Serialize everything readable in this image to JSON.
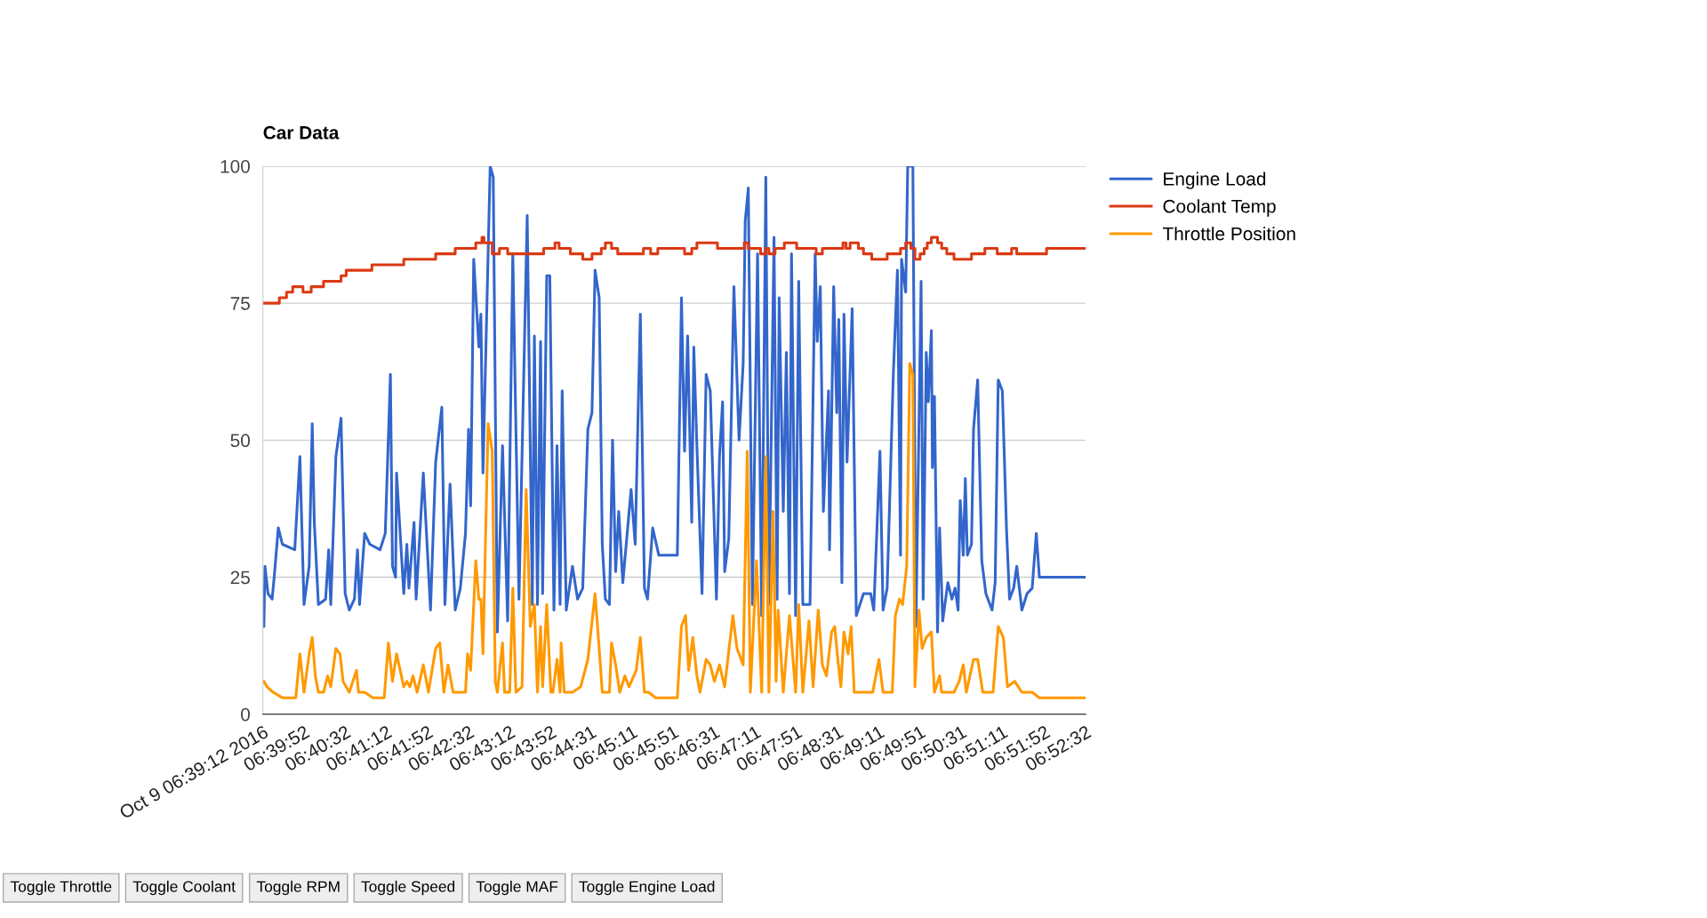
{
  "chart_data": {
    "type": "line",
    "title": "Car Data",
    "grid": "y",
    "legend": "right",
    "ylim": [
      0,
      100
    ],
    "yticks": [
      0,
      25,
      50,
      75,
      100
    ],
    "xlim": [
      "2016-10-09T06:39:12",
      "2016-10-09T06:52:32"
    ],
    "xticks": [
      {
        "value": "2016-10-09T06:39:12",
        "label": "Oct 9 06:39:12 2016"
      },
      {
        "value": "2016-10-09T06:39:52",
        "label": "06:39:52"
      },
      {
        "value": "2016-10-09T06:40:32",
        "label": "06:40:32"
      },
      {
        "value": "2016-10-09T06:41:12",
        "label": "06:41:12"
      },
      {
        "value": "2016-10-09T06:41:52",
        "label": "06:41:52"
      },
      {
        "value": "2016-10-09T06:42:32",
        "label": "06:42:32"
      },
      {
        "value": "2016-10-09T06:43:12",
        "label": "06:43:12"
      },
      {
        "value": "2016-10-09T06:43:52",
        "label": "06:43:52"
      },
      {
        "value": "2016-10-09T06:44:31",
        "label": "06:44:31"
      },
      {
        "value": "2016-10-09T06:45:11",
        "label": "06:45:11"
      },
      {
        "value": "2016-10-09T06:45:51",
        "label": "06:45:51"
      },
      {
        "value": "2016-10-09T06:46:31",
        "label": "06:46:31"
      },
      {
        "value": "2016-10-09T06:47:11",
        "label": "06:47:11"
      },
      {
        "value": "2016-10-09T06:47:51",
        "label": "06:47:51"
      },
      {
        "value": "2016-10-09T06:48:31",
        "label": "06:48:31"
      },
      {
        "value": "2016-10-09T06:49:11",
        "label": "06:49:11"
      },
      {
        "value": "2016-10-09T06:49:51",
        "label": "06:49:51"
      },
      {
        "value": "2016-10-09T06:50:31",
        "label": "06:50:31"
      },
      {
        "value": "2016-10-09T06:51:11",
        "label": "06:51:11"
      },
      {
        "value": "2016-10-09T06:51:52",
        "label": "06:51:52"
      },
      {
        "value": "2016-10-09T06:52:32",
        "label": "06:52:32"
      }
    ],
    "annotations": [
      "Toggle Throttle",
      "Toggle Coolant",
      "Toggle RPM",
      "Toggle Speed",
      "Toggle MAF",
      "Toggle Engine Load"
    ],
    "series": [
      {
        "name": "Engine Load",
        "type": "line",
        "color": "#3366cc",
        "x": [
          "2016-10-09T06:39:13",
          "2016-10-09T06:39:14",
          "2016-10-09T06:39:17",
          "2016-10-09T06:39:21",
          "2016-10-09T06:39:23",
          "2016-10-09T06:39:27",
          "2016-10-09T06:39:31",
          "2016-10-09T06:39:43",
          "2016-10-09T06:39:48",
          "2016-10-09T06:39:52",
          "2016-10-09T06:39:57",
          "2016-10-09T06:40:00",
          "2016-10-09T06:40:02",
          "2016-10-09T06:40:06",
          "2016-10-09T06:40:13",
          "2016-10-09T06:40:16",
          "2016-10-09T06:40:18",
          "2016-10-09T06:40:23",
          "2016-10-09T06:40:28",
          "2016-10-09T06:40:32",
          "2016-10-09T06:40:36",
          "2016-10-09T06:40:41",
          "2016-10-09T06:40:44",
          "2016-10-09T06:40:46",
          "2016-10-09T06:40:51",
          "2016-10-09T06:40:56",
          "2016-10-09T06:41:06",
          "2016-10-09T06:41:11",
          "2016-10-09T06:41:16",
          "2016-10-09T06:41:18",
          "2016-10-09T06:41:21",
          "2016-10-09T06:41:22",
          "2016-10-09T06:41:29",
          "2016-10-09T06:41:32",
          "2016-10-09T06:41:34",
          "2016-10-09T06:41:39",
          "2016-10-09T06:41:41",
          "2016-10-09T06:41:48",
          "2016-10-09T06:41:55",
          "2016-10-09T06:42:00",
          "2016-10-09T06:42:06",
          "2016-10-09T06:42:09",
          "2016-10-09T06:42:14",
          "2016-10-09T06:42:19",
          "2016-10-09T06:42:24",
          "2016-10-09T06:42:29",
          "2016-10-09T06:42:32",
          "2016-10-09T06:42:34",
          "2016-10-09T06:42:37",
          "2016-10-09T06:42:42",
          "2016-10-09T06:42:44",
          "2016-10-09T06:42:46",
          "2016-10-09T06:42:53",
          "2016-10-09T06:42:56",
          "2016-10-09T06:43:00",
          "2016-10-09T06:43:05",
          "2016-10-09T06:43:10",
          "2016-10-09T06:43:15",
          "2016-10-09T06:43:21",
          "2016-10-09T06:43:29",
          "2016-10-09T06:43:34",
          "2016-10-09T06:43:36",
          "2016-10-09T06:43:39",
          "2016-10-09T06:43:42",
          "2016-10-09T06:43:44",
          "2016-10-09T06:43:48",
          "2016-10-09T06:43:51",
          "2016-10-09T06:43:55",
          "2016-10-09T06:43:58",
          "2016-10-09T06:44:01",
          "2016-10-09T06:44:03",
          "2016-10-09T06:44:07",
          "2016-10-09T06:44:13",
          "2016-10-09T06:44:18",
          "2016-10-09T06:44:23",
          "2016-10-09T06:44:28",
          "2016-10-09T06:44:32",
          "2016-10-09T06:44:35",
          "2016-10-09T06:44:39",
          "2016-10-09T06:44:42",
          "2016-10-09T06:44:45",
          "2016-10-09T06:44:49",
          "2016-10-09T06:44:52",
          "2016-10-09T06:44:55",
          "2016-10-09T06:44:58",
          "2016-10-09T06:45:02",
          "2016-10-09T06:45:10",
          "2016-10-09T06:45:14",
          "2016-10-09T06:45:19",
          "2016-10-09T06:45:23",
          "2016-10-09T06:45:26",
          "2016-10-09T06:45:31",
          "2016-10-09T06:45:37",
          "2016-10-09T06:45:55",
          "2016-10-09T06:45:59",
          "2016-10-09T06:46:02",
          "2016-10-09T06:46:05",
          "2016-10-09T06:46:09",
          "2016-10-09T06:46:11",
          "2016-10-09T06:46:14",
          "2016-10-09T06:46:19",
          "2016-10-09T06:46:23",
          "2016-10-09T06:46:27",
          "2016-10-09T06:46:33",
          "2016-10-09T06:46:36",
          "2016-10-09T06:46:39",
          "2016-10-09T06:46:41",
          "2016-10-09T06:46:45",
          "2016-10-09T06:46:50",
          "2016-10-09T06:46:55",
          "2016-10-09T06:46:59",
          "2016-10-09T06:47:01",
          "2016-10-09T06:47:04",
          "2016-10-09T06:47:08",
          "2016-10-09T06:47:13",
          "2016-10-09T06:47:17",
          "2016-10-09T06:47:21",
          "2016-10-09T06:47:24",
          "2016-10-09T06:47:29",
          "2016-10-09T06:47:32",
          "2016-10-09T06:47:34",
          "2016-10-09T06:47:38",
          "2016-10-09T06:47:41",
          "2016-10-09T06:47:44",
          "2016-10-09T06:47:46",
          "2016-10-09T06:47:50",
          "2016-10-09T06:47:53",
          "2016-10-09T06:47:57",
          "2016-10-09T06:48:04",
          "2016-10-09T06:48:09",
          "2016-10-09T06:48:11",
          "2016-10-09T06:48:14",
          "2016-10-09T06:48:17",
          "2016-10-09T06:48:22",
          "2016-10-09T06:48:23",
          "2016-10-09T06:48:27",
          "2016-10-09T06:48:30",
          "2016-10-09T06:48:32",
          "2016-10-09T06:48:35",
          "2016-10-09T06:48:37",
          "2016-10-09T06:48:40",
          "2016-10-09T06:48:45",
          "2016-10-09T06:48:49",
          "2016-10-09T06:48:56",
          "2016-10-09T06:49:03",
          "2016-10-09T06:49:06",
          "2016-10-09T06:49:12",
          "2016-10-09T06:49:15",
          "2016-10-09T06:49:19",
          "2016-10-09T06:49:25",
          "2016-10-09T06:49:29",
          "2016-10-09T06:49:32",
          "2016-10-09T06:49:33",
          "2016-10-09T06:49:37",
          "2016-10-09T06:49:39",
          "2016-10-09T06:49:44",
          "2016-10-09T06:49:47",
          "2016-10-09T06:49:52",
          "2016-10-09T06:49:54",
          "2016-10-09T06:49:57",
          "2016-10-09T06:49:59",
          "2016-10-09T06:50:02",
          "2016-10-09T06:50:03",
          "2016-10-09T06:50:05",
          "2016-10-09T06:50:08",
          "2016-10-09T06:50:10",
          "2016-10-09T06:50:13",
          "2016-10-09T06:50:18",
          "2016-10-09T06:50:22",
          "2016-10-09T06:50:25",
          "2016-10-09T06:50:28",
          "2016-10-09T06:50:30",
          "2016-10-09T06:50:33",
          "2016-10-09T06:50:35",
          "2016-10-09T06:50:37",
          "2016-10-09T06:50:41",
          "2016-10-09T06:50:43",
          "2016-10-09T06:50:47",
          "2016-10-09T06:50:51",
          "2016-10-09T06:50:55",
          "2016-10-09T06:51:01",
          "2016-10-09T06:51:04",
          "2016-10-09T06:51:07",
          "2016-10-09T06:51:11",
          "2016-10-09T06:51:15",
          "2016-10-09T06:51:18",
          "2016-10-09T06:51:22",
          "2016-10-09T06:51:25",
          "2016-10-09T06:51:30",
          "2016-10-09T06:51:35",
          "2016-10-09T06:51:40",
          "2016-10-09T06:51:44",
          "2016-10-09T06:51:47",
          "2016-10-09T06:51:58",
          "2016-10-09T06:52:32"
        ],
        "values": [
          16,
          27,
          22,
          21,
          25,
          34,
          31,
          30,
          47,
          20,
          27,
          53,
          35,
          20,
          21,
          30,
          20,
          47,
          54,
          22,
          19,
          21,
          30,
          20,
          33,
          31,
          30,
          33,
          62,
          27,
          25,
          44,
          22,
          31,
          23,
          35,
          21,
          44,
          19,
          46,
          56,
          20,
          42,
          19,
          23,
          33,
          52,
          38,
          83,
          67,
          73,
          44,
          100,
          98,
          15,
          49,
          17,
          84,
          21,
          91,
          20,
          69,
          20,
          68,
          22,
          80,
          80,
          19,
          49,
          20,
          59,
          19,
          27,
          21,
          23,
          52,
          55,
          81,
          76,
          31,
          21,
          20,
          50,
          26,
          37,
          24,
          41,
          31,
          73,
          23,
          21,
          34,
          29,
          29,
          76,
          48,
          69,
          35,
          67,
          49,
          22,
          62,
          59,
          21,
          47,
          57,
          26,
          32,
          78,
          50,
          64,
          90,
          96,
          20,
          84,
          18,
          98,
          20,
          87,
          21,
          76,
          37,
          66,
          22,
          84,
          18,
          79,
          20,
          20,
          84,
          68,
          78,
          37,
          59,
          30,
          78,
          55,
          72,
          24,
          73,
          46,
          74,
          18,
          22,
          22,
          19,
          48,
          19,
          23,
          62,
          81,
          29,
          83,
          77,
          100,
          100,
          16,
          79,
          21,
          66,
          57,
          70,
          45,
          58,
          15,
          34,
          17,
          24,
          21,
          23,
          19,
          39,
          29,
          43,
          29,
          31,
          52,
          61,
          28,
          22,
          19,
          24,
          61,
          59,
          34,
          21,
          23,
          27,
          19,
          22,
          23,
          33,
          25,
          25,
          25
        ]
      },
      {
        "name": "Coolant Temp",
        "type": "step",
        "color": "#dc3912",
        "x": [
          "2016-10-09T06:39:12",
          "2016-10-09T06:39:28",
          "2016-10-09T06:39:35",
          "2016-10-09T06:39:41",
          "2016-10-09T06:39:51",
          "2016-10-09T06:39:59",
          "2016-10-09T06:40:11",
          "2016-10-09T06:40:28",
          "2016-10-09T06:40:33",
          "2016-10-09T06:40:58",
          "2016-10-09T06:41:29",
          "2016-10-09T06:42:00",
          "2016-10-09T06:42:19",
          "2016-10-09T06:42:39",
          "2016-10-09T06:42:45",
          "2016-10-09T06:42:47",
          "2016-10-09T06:42:55",
          "2016-10-09T06:43:02",
          "2016-10-09T06:43:10",
          "2016-10-09T06:43:45",
          "2016-10-09T06:43:56",
          "2016-10-09T06:44:00",
          "2016-10-09T06:44:11",
          "2016-10-09T06:44:23",
          "2016-10-09T06:44:32",
          "2016-10-09T06:44:41",
          "2016-10-09T06:44:45",
          "2016-10-09T06:44:51",
          "2016-10-09T06:44:57",
          "2016-10-09T06:45:22",
          "2016-10-09T06:45:29",
          "2016-10-09T06:45:36",
          "2016-10-09T06:46:02",
          "2016-10-09T06:46:09",
          "2016-10-09T06:46:14",
          "2016-10-09T06:46:34",
          "2016-10-09T06:47:00",
          "2016-10-09T06:47:04",
          "2016-10-09T06:47:16",
          "2016-10-09T06:47:21",
          "2016-10-09T06:47:24",
          "2016-10-09T06:47:30",
          "2016-10-09T06:47:39",
          "2016-10-09T06:47:51",
          "2016-10-09T06:48:10",
          "2016-10-09T06:48:16",
          "2016-10-09T06:48:36",
          "2016-10-09T06:48:39",
          "2016-10-09T06:48:43",
          "2016-10-09T06:48:51",
          "2016-10-09T06:48:56",
          "2016-10-09T06:49:04",
          "2016-10-09T06:49:19",
          "2016-10-09T06:49:32",
          "2016-10-09T06:49:37",
          "2016-10-09T06:49:42",
          "2016-10-09T06:49:46",
          "2016-10-09T06:49:51",
          "2016-10-09T06:49:55",
          "2016-10-09T06:49:58",
          "2016-10-09T06:50:02",
          "2016-10-09T06:50:08",
          "2016-10-09T06:50:12",
          "2016-10-09T06:50:17",
          "2016-10-09T06:50:24",
          "2016-10-09T06:50:41",
          "2016-10-09T06:50:54",
          "2016-10-09T06:51:06",
          "2016-10-09T06:51:20",
          "2016-10-09T06:51:25",
          "2016-10-09T06:51:54",
          "2016-10-09T06:52:32"
        ],
        "values": [
          75,
          76,
          77,
          78,
          77,
          78,
          79,
          80,
          81,
          82,
          83,
          84,
          85,
          86,
          87,
          86,
          84,
          85,
          84,
          85,
          86,
          85,
          84,
          83,
          84,
          85,
          86,
          85,
          84,
          85,
          84,
          85,
          84,
          85,
          86,
          85,
          86,
          85,
          84,
          85,
          84,
          85,
          86,
          85,
          84,
          85,
          86,
          85,
          86,
          85,
          84,
          83,
          84,
          85,
          86,
          85,
          83,
          84,
          85,
          86,
          87,
          86,
          85,
          84,
          83,
          84,
          85,
          84,
          85,
          84,
          85,
          85
        ]
      },
      {
        "name": "Throttle Position",
        "type": "line",
        "color": "#ff9900",
        "x": [
          "2016-10-09T06:39:13",
          "2016-10-09T06:39:16",
          "2016-10-09T06:39:22",
          "2016-10-09T06:39:31",
          "2016-10-09T06:39:44",
          "2016-10-09T06:39:48",
          "2016-10-09T06:39:52",
          "2016-10-09T06:39:57",
          "2016-10-09T06:40:00",
          "2016-10-09T06:40:03",
          "2016-10-09T06:40:06",
          "2016-10-09T06:40:11",
          "2016-10-09T06:40:15",
          "2016-10-09T06:40:18",
          "2016-10-09T06:40:23",
          "2016-10-09T06:40:27",
          "2016-10-09T06:40:30",
          "2016-10-09T06:40:36",
          "2016-10-09T06:40:43",
          "2016-10-09T06:40:45",
          "2016-10-09T06:40:51",
          "2016-10-09T06:40:59",
          "2016-10-09T06:41:10",
          "2016-10-09T06:41:14",
          "2016-10-09T06:41:18",
          "2016-10-09T06:41:22",
          "2016-10-09T06:41:29",
          "2016-10-09T06:41:32",
          "2016-10-09T06:41:35",
          "2016-10-09T06:41:38",
          "2016-10-09T06:41:42",
          "2016-10-09T06:41:48",
          "2016-10-09T06:41:53",
          "2016-10-09T06:42:00",
          "2016-10-09T06:42:04",
          "2016-10-09T06:42:08",
          "2016-10-09T06:42:12",
          "2016-10-09T06:42:17",
          "2016-10-09T06:42:29",
          "2016-10-09T06:42:31",
          "2016-10-09T06:42:34",
          "2016-10-09T06:42:39",
          "2016-10-09T06:42:42",
          "2016-10-09T06:42:44",
          "2016-10-09T06:42:46",
          "2016-10-09T06:42:51",
          "2016-10-09T06:42:55",
          "2016-10-09T06:42:58",
          "2016-10-09T06:43:00",
          "2016-10-09T06:43:05",
          "2016-10-09T06:43:07",
          "2016-10-09T06:43:12",
          "2016-10-09T06:43:15",
          "2016-10-09T06:43:18",
          "2016-10-09T06:43:24",
          "2016-10-09T06:43:28",
          "2016-10-09T06:43:32",
          "2016-10-09T06:43:36",
          "2016-10-09T06:43:39",
          "2016-10-09T06:43:42",
          "2016-10-09T06:43:44",
          "2016-10-09T06:43:48",
          "2016-10-09T06:43:52",
          "2016-10-09T06:43:54",
          "2016-10-09T06:43:58",
          "2016-10-09T06:44:01",
          "2016-10-09T06:44:02",
          "2016-10-09T06:44:05",
          "2016-10-09T06:44:13",
          "2016-10-09T06:44:21",
          "2016-10-09T06:44:28",
          "2016-10-09T06:44:35",
          "2016-10-09T06:44:39",
          "2016-10-09T06:44:42",
          "2016-10-09T06:44:49",
          "2016-10-09T06:44:51",
          "2016-10-09T06:44:55",
          "2016-10-09T06:44:59",
          "2016-10-09T06:45:04",
          "2016-10-09T06:45:08",
          "2016-10-09T06:45:15",
          "2016-10-09T06:45:19",
          "2016-10-09T06:45:23",
          "2016-10-09T06:45:27",
          "2016-10-09T06:45:34",
          "2016-10-09T06:45:55",
          "2016-10-09T06:45:59",
          "2016-10-09T06:46:03",
          "2016-10-09T06:46:06",
          "2016-10-09T06:46:10",
          "2016-10-09T06:46:14",
          "2016-10-09T06:46:17",
          "2016-10-09T06:46:23",
          "2016-10-09T06:46:27",
          "2016-10-09T06:46:31",
          "2016-10-09T06:46:36",
          "2016-10-09T06:46:41",
          "2016-10-09T06:46:49",
          "2016-10-09T06:46:53",
          "2016-10-09T06:46:59",
          "2016-10-09T06:47:03",
          "2016-10-09T06:47:06",
          "2016-10-09T06:47:12",
          "2016-10-09T06:47:17",
          "2016-10-09T06:47:21",
          "2016-10-09T06:47:24",
          "2016-10-09T06:47:28",
          "2016-10-09T06:47:31",
          "2016-10-09T06:47:33",
          "2016-10-09T06:47:38",
          "2016-10-09T06:47:44",
          "2016-10-09T06:47:50",
          "2016-10-09T06:47:53",
          "2016-10-09T06:47:57",
          "2016-10-09T06:48:03",
          "2016-10-09T06:48:07",
          "2016-10-09T06:48:12",
          "2016-10-09T06:48:16",
          "2016-10-09T06:48:20",
          "2016-10-09T06:48:25",
          "2016-10-09T06:48:28",
          "2016-10-09T06:48:31",
          "2016-10-09T06:48:34",
          "2016-10-09T06:48:37",
          "2016-10-09T06:48:41",
          "2016-10-09T06:48:44",
          "2016-10-09T06:48:47",
          "2016-10-09T06:48:58",
          "2016-10-09T06:49:05",
          "2016-10-09T06:49:11",
          "2016-10-09T06:49:15",
          "2016-10-09T06:49:24",
          "2016-10-09T06:49:27",
          "2016-10-09T06:49:31",
          "2016-10-09T06:49:34",
          "2016-10-09T06:49:38",
          "2016-10-09T06:49:41",
          "2016-10-09T06:49:44",
          "2016-10-09T06:49:46",
          "2016-10-09T06:49:50",
          "2016-10-09T06:49:53",
          "2016-10-09T06:49:57",
          "2016-10-09T06:50:02",
          "2016-10-09T06:50:05",
          "2016-10-09T06:50:10",
          "2016-10-09T06:50:12",
          "2016-10-09T06:50:24",
          "2016-10-09T06:50:29",
          "2016-10-09T06:50:33",
          "2016-10-09T06:50:36",
          "2016-10-09T06:50:43",
          "2016-10-09T06:50:47",
          "2016-10-09T06:50:52",
          "2016-10-09T06:51:02",
          "2016-10-09T06:51:07",
          "2016-10-09T06:51:12",
          "2016-10-09T06:51:16",
          "2016-10-09T06:51:23",
          "2016-10-09T06:51:30",
          "2016-10-09T06:51:40",
          "2016-10-09T06:51:47",
          "2016-10-09T06:52:32"
        ],
        "values": [
          6,
          5,
          4,
          3,
          3,
          11,
          4,
          11,
          14,
          7,
          4,
          4,
          7,
          5,
          12,
          11,
          6,
          4,
          8,
          4,
          4,
          3,
          3,
          13,
          6,
          11,
          5,
          6,
          5,
          7,
          4,
          9,
          4,
          12,
          13,
          4,
          9,
          4,
          4,
          11,
          8,
          28,
          21,
          21,
          11,
          53,
          48,
          6,
          4,
          13,
          4,
          4,
          23,
          4,
          5,
          41,
          16,
          20,
          4,
          16,
          5,
          20,
          4,
          4,
          10,
          4,
          13,
          4,
          4,
          5,
          10,
          22,
          12,
          4,
          4,
          13,
          9,
          4,
          7,
          5,
          8,
          14,
          4,
          4,
          3,
          3,
          16,
          18,
          8,
          14,
          7,
          4,
          10,
          9,
          6,
          9,
          5,
          18,
          12,
          9,
          48,
          4,
          28,
          4,
          47,
          4,
          37,
          6,
          19,
          4,
          18,
          4,
          20,
          4,
          17,
          5,
          19,
          9,
          7,
          15,
          16,
          10,
          5,
          15,
          11,
          16,
          4,
          4,
          4,
          10,
          4,
          4,
          18,
          21,
          20,
          27,
          64,
          62,
          5,
          19,
          12,
          14,
          15,
          4,
          7,
          4,
          4,
          6,
          9,
          4,
          10,
          10,
          4,
          4,
          16,
          14,
          5,
          6,
          4,
          4,
          3,
          3
        ]
      }
    ]
  }
}
